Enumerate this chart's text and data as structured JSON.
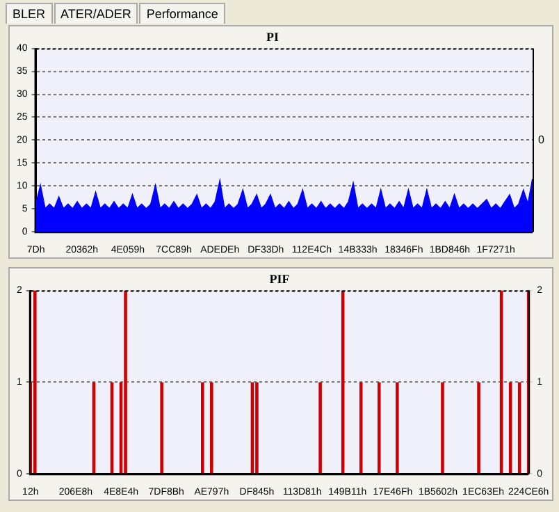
{
  "chart_data": [
    {
      "type": "area",
      "title": "PI",
      "annotations": [
        "BLER",
        "ATER/ADER",
        "Performance",
        "0"
      ],
      "categories": [
        "7Dh",
        null,
        null,
        null,
        null,
        null,
        null,
        null,
        null,
        null,
        "20362h",
        null,
        null,
        null,
        null,
        null,
        null,
        null,
        null,
        null,
        "4E059h",
        null,
        null,
        null,
        null,
        null,
        null,
        null,
        null,
        null,
        "7CC89h",
        null,
        null,
        null,
        null,
        null,
        null,
        null,
        null,
        null,
        "ADEDEh",
        null,
        null,
        null,
        null,
        null,
        null,
        null,
        null,
        null,
        "DF33Dh",
        null,
        null,
        null,
        null,
        null,
        null,
        null,
        null,
        null,
        "112E4Ch",
        null,
        null,
        null,
        null,
        null,
        null,
        null,
        null,
        null,
        "14B333h",
        null,
        null,
        null,
        null,
        null,
        null,
        null,
        null,
        null,
        "18346Fh",
        null,
        null,
        null,
        null,
        null,
        null,
        null,
        null,
        null,
        "1BD846h",
        null,
        null,
        null,
        null,
        null,
        null,
        null,
        null,
        null,
        "1F7271h",
        null,
        null,
        null,
        null,
        null,
        null,
        null,
        null
      ],
      "series": [
        {
          "color": "#0000ff",
          "values": [
            6,
            10,
            5,
            6,
            5,
            7.5,
            5,
            6,
            5,
            6.5,
            5,
            6,
            5,
            8.5,
            5,
            6,
            5,
            6.5,
            5,
            6,
            5,
            8,
            5,
            6,
            5,
            6,
            10,
            5,
            6,
            5,
            6.5,
            5,
            6,
            5,
            6,
            8,
            5,
            6,
            5,
            6.5,
            11,
            5,
            6,
            5,
            6,
            9,
            5,
            6,
            8,
            5,
            6,
            8,
            5,
            6,
            5,
            6.5,
            5,
            6,
            9,
            5,
            6,
            5,
            6.5,
            5,
            6,
            5,
            6,
            5,
            6.5,
            10.5,
            5,
            6,
            5,
            6,
            5,
            9,
            5,
            6,
            5,
            6.5,
            5,
            9,
            5,
            6,
            5,
            9,
            5,
            6,
            5,
            6.5,
            5,
            8,
            5,
            6,
            5,
            6,
            5,
            6,
            7,
            5,
            6,
            5,
            6.5,
            8,
            5,
            6,
            9,
            6,
            11.5
          ]
        }
      ],
      "ylim": [
        0,
        40
      ],
      "yticks": [
        0,
        5,
        10,
        15,
        20,
        25,
        30,
        35,
        40
      ],
      "grid": "y"
    },
    {
      "type": "bar",
      "title": "PIF",
      "categories": [
        "12h",
        null,
        null,
        null,
        null,
        null,
        null,
        null,
        null,
        null,
        "206E8h",
        null,
        null,
        null,
        null,
        null,
        null,
        null,
        null,
        null,
        "4E8E4h",
        null,
        null,
        null,
        null,
        null,
        null,
        null,
        null,
        null,
        "7DF8Bh",
        null,
        null,
        null,
        null,
        null,
        null,
        null,
        null,
        null,
        "AE797h",
        null,
        null,
        null,
        null,
        null,
        null,
        null,
        null,
        null,
        "DF845h",
        null,
        null,
        null,
        null,
        null,
        null,
        null,
        null,
        null,
        "113D81h",
        null,
        null,
        null,
        null,
        null,
        null,
        null,
        null,
        null,
        "149B11h",
        null,
        null,
        null,
        null,
        null,
        null,
        null,
        null,
        null,
        "17E46Fh",
        null,
        null,
        null,
        null,
        null,
        null,
        null,
        null,
        null,
        "1B5602h",
        null,
        null,
        null,
        null,
        null,
        null,
        null,
        null,
        null,
        "1EC63Eh",
        null,
        null,
        null,
        null,
        null,
        null,
        null,
        null,
        null,
        "224CE6h"
      ],
      "series": [
        {
          "color": "#cc0000",
          "values": [
            1,
            2,
            0,
            0,
            0,
            0,
            0,
            0,
            0,
            0,
            0,
            0,
            0,
            0,
            1,
            0,
            0,
            0,
            1,
            0,
            1,
            2,
            0,
            0,
            0,
            0,
            0,
            0,
            0,
            1,
            0,
            0,
            0,
            0,
            0,
            0,
            0,
            0,
            1,
            0,
            1,
            0,
            0,
            0,
            0,
            0,
            0,
            0,
            0,
            1,
            1,
            0,
            0,
            0,
            0,
            0,
            0,
            0,
            0,
            0,
            0,
            0,
            0,
            0,
            1,
            0,
            0,
            0,
            0,
            2,
            0,
            0,
            0,
            1,
            0,
            0,
            0,
            1,
            0,
            0,
            0,
            1,
            0,
            0,
            0,
            0,
            0,
            0,
            0,
            0,
            0,
            1,
            0,
            0,
            0,
            0,
            0,
            0,
            0,
            1,
            0,
            0,
            0,
            0,
            2,
            0,
            1,
            0,
            1,
            0,
            2
          ]
        }
      ],
      "ylim": [
        0,
        2
      ],
      "yticks": [
        0,
        1,
        2
      ],
      "y2lim": [
        0,
        2
      ],
      "y2ticks": [
        0,
        1,
        2
      ],
      "grid": "y"
    }
  ]
}
